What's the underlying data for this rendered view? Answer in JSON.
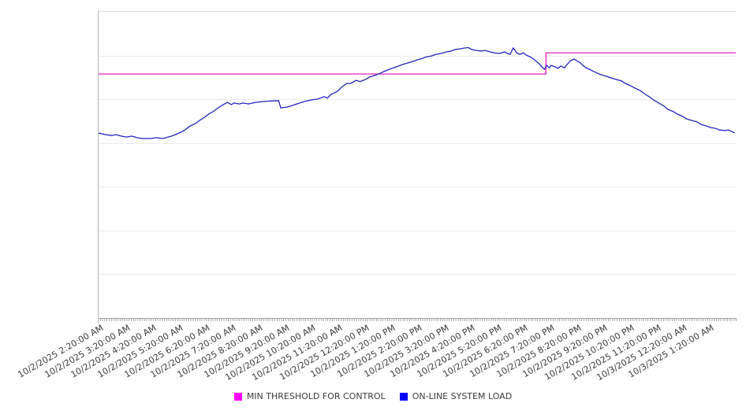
{
  "legend": {
    "items": [
      {
        "label": "MIN THRESHOLD FOR CONTROL",
        "color": "#ff00ff"
      },
      {
        "label": "ON-LINE SYSTEM LOAD",
        "color": "#0000ff"
      }
    ]
  },
  "chart_data": {
    "type": "line",
    "title": "",
    "x_axis": {
      "labels": [
        "10/2/2025 2:20:00 AM",
        "10/2/2025 3:20:00 AM",
        "10/2/2025 4:20:00 AM",
        "10/2/2025 5:20:00 AM",
        "10/2/2025 6:20:00 AM",
        "10/2/2025 7:20:00 AM",
        "10/2/2025 8:20:00 AM",
        "10/2/2025 9:20:00 AM",
        "10/2/2025 10:20:00 AM",
        "10/2/2025 11:20:00 AM",
        "10/2/2025 12:20:00 PM",
        "10/2/2025 1:20:00 PM",
        "10/2/2025 2:20:00 PM",
        "10/2/2025 3:20:00 PM",
        "10/2/2025 4:20:00 PM",
        "10/2/2025 5:20:00 PM",
        "10/2/2025 6:20:00 PM",
        "10/2/2025 7:20:00 PM",
        "10/2/2025 8:20:00 PM",
        "10/2/2025 9:20:00 PM",
        "10/2/2025 10:20:00 PM",
        "10/2/2025 11:20:00 PM",
        "10/3/2025 12:20:00 AM",
        "10/3/2025 1:20:00 AM"
      ],
      "hours_span": 24,
      "label_interval": "1 hour",
      "minor_tick_interval": "~5 minutes",
      "label_rotation_deg": -30
    },
    "y_axis": {
      "tick_labels_visible": false,
      "units": "relative 0-100 (estimated from pixels; chart shows no y-axis labels)",
      "range": [
        0,
        100
      ],
      "horizontal_divisions": 7
    },
    "series": [
      {
        "id": "min-threshold-line",
        "name": "MIN THRESHOLD FOR CONTROL",
        "color": "#e020c0",
        "shape": "step: constant 79.7 until ~16.85h after start (~7:10 PM), then constant 86.6",
        "points": [
          [
            0,
            79.7
          ],
          [
            16.85,
            79.7
          ],
          [
            16.85,
            86.6
          ],
          [
            24,
            86.6
          ]
        ]
      },
      {
        "id": "system-load-line",
        "name": "ON-LINE SYSTEM LOAD",
        "color": "#2323bf",
        "points": [
          [
            0,
            60.4
          ],
          [
            0.25,
            59.9
          ],
          [
            0.5,
            59.6
          ],
          [
            0.65,
            59.9
          ],
          [
            0.85,
            59.4
          ],
          [
            1.05,
            59.1
          ],
          [
            1.25,
            59.4
          ],
          [
            1.45,
            58.9
          ],
          [
            1.65,
            58.6
          ],
          [
            1.95,
            58.6
          ],
          [
            2.2,
            58.9
          ],
          [
            2.4,
            58.6
          ],
          [
            2.55,
            58.9
          ],
          [
            2.75,
            59.4
          ],
          [
            2.9,
            59.9
          ],
          [
            3.1,
            60.7
          ],
          [
            3.25,
            61.4
          ],
          [
            3.45,
            62.7
          ],
          [
            3.65,
            63.5
          ],
          [
            3.8,
            64.5
          ],
          [
            4.0,
            65.6
          ],
          [
            4.15,
            66.6
          ],
          [
            4.35,
            67.6
          ],
          [
            4.5,
            68.6
          ],
          [
            4.7,
            69.7
          ],
          [
            4.85,
            70.4
          ],
          [
            5.0,
            69.7
          ],
          [
            5.1,
            70.2
          ],
          [
            5.3,
            69.9
          ],
          [
            5.45,
            70.2
          ],
          [
            5.65,
            69.9
          ],
          [
            5.9,
            70.4
          ],
          [
            6.1,
            70.6
          ],
          [
            6.35,
            70.8
          ],
          [
            6.6,
            70.9
          ],
          [
            6.78,
            71.0
          ],
          [
            6.86,
            68.6
          ],
          [
            7.1,
            68.9
          ],
          [
            7.3,
            69.4
          ],
          [
            7.5,
            70.0
          ],
          [
            7.75,
            70.7
          ],
          [
            8.0,
            71.2
          ],
          [
            8.25,
            71.5
          ],
          [
            8.5,
            72.3
          ],
          [
            8.62,
            71.8
          ],
          [
            8.75,
            73.0
          ],
          [
            9.0,
            74.0
          ],
          [
            9.15,
            75.4
          ],
          [
            9.35,
            76.6
          ],
          [
            9.5,
            76.6
          ],
          [
            9.7,
            77.6
          ],
          [
            9.85,
            77.2
          ],
          [
            10.05,
            77.9
          ],
          [
            10.2,
            78.7
          ],
          [
            10.4,
            79.2
          ],
          [
            10.6,
            79.9
          ],
          [
            10.75,
            80.5
          ],
          [
            10.95,
            81.2
          ],
          [
            11.1,
            81.7
          ],
          [
            11.3,
            82.3
          ],
          [
            11.45,
            82.8
          ],
          [
            11.65,
            83.3
          ],
          [
            11.85,
            83.8
          ],
          [
            12.0,
            84.3
          ],
          [
            12.2,
            84.8
          ],
          [
            12.35,
            85.3
          ],
          [
            12.55,
            85.6
          ],
          [
            12.7,
            86.1
          ],
          [
            12.9,
            86.4
          ],
          [
            13.1,
            86.9
          ],
          [
            13.25,
            87.1
          ],
          [
            13.45,
            87.7
          ],
          [
            13.6,
            87.9
          ],
          [
            13.8,
            88.2
          ],
          [
            13.93,
            88.3
          ],
          [
            14.05,
            87.7
          ],
          [
            14.2,
            87.4
          ],
          [
            14.4,
            87.2
          ],
          [
            14.55,
            87.4
          ],
          [
            14.75,
            86.9
          ],
          [
            14.9,
            86.6
          ],
          [
            15.1,
            86.4
          ],
          [
            15.3,
            86.9
          ],
          [
            15.4,
            86.4
          ],
          [
            15.5,
            86.1
          ],
          [
            15.62,
            88.2
          ],
          [
            15.75,
            86.6
          ],
          [
            15.87,
            86.1
          ],
          [
            16.0,
            86.6
          ],
          [
            16.1,
            85.9
          ],
          [
            16.25,
            85.3
          ],
          [
            16.35,
            84.8
          ],
          [
            16.45,
            84.1
          ],
          [
            16.6,
            83.0
          ],
          [
            16.7,
            82.0
          ],
          [
            16.8,
            81.2
          ],
          [
            16.88,
            82.5
          ],
          [
            16.97,
            81.7
          ],
          [
            17.05,
            82.5
          ],
          [
            17.2,
            82.0
          ],
          [
            17.3,
            81.5
          ],
          [
            17.4,
            82.3
          ],
          [
            17.55,
            81.7
          ],
          [
            17.65,
            82.8
          ],
          [
            17.75,
            83.8
          ],
          [
            17.9,
            84.6
          ],
          [
            18.0,
            84.1
          ],
          [
            18.15,
            83.3
          ],
          [
            18.25,
            82.5
          ],
          [
            18.35,
            81.7
          ],
          [
            18.5,
            81.2
          ],
          [
            18.6,
            80.7
          ],
          [
            18.8,
            79.9
          ],
          [
            18.95,
            79.4
          ],
          [
            19.15,
            78.9
          ],
          [
            19.3,
            78.4
          ],
          [
            19.5,
            77.9
          ],
          [
            19.7,
            77.4
          ],
          [
            19.85,
            76.6
          ],
          [
            20.05,
            75.8
          ],
          [
            20.2,
            75.1
          ],
          [
            20.4,
            74.3
          ],
          [
            20.55,
            73.3
          ],
          [
            20.75,
            72.2
          ],
          [
            20.9,
            71.2
          ],
          [
            21.1,
            70.2
          ],
          [
            21.3,
            69.2
          ],
          [
            21.45,
            68.1
          ],
          [
            21.65,
            67.4
          ],
          [
            21.8,
            66.6
          ],
          [
            22.0,
            65.8
          ],
          [
            22.15,
            65.0
          ],
          [
            22.35,
            64.5
          ],
          [
            22.55,
            64.0
          ],
          [
            22.7,
            63.2
          ],
          [
            22.9,
            62.7
          ],
          [
            23.05,
            62.2
          ],
          [
            23.25,
            61.9
          ],
          [
            23.4,
            61.4
          ],
          [
            23.6,
            61.2
          ],
          [
            23.72,
            61.4
          ],
          [
            23.85,
            60.9
          ],
          [
            23.96,
            60.4
          ]
        ]
      }
    ]
  }
}
